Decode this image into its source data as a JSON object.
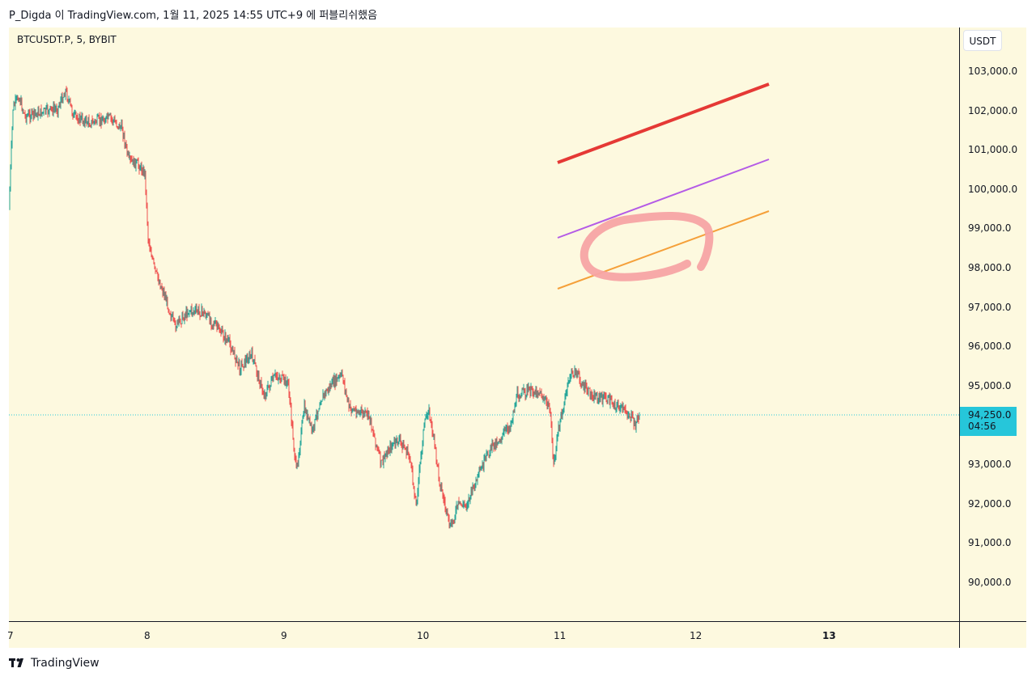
{
  "header": {
    "publish_text": "P_Digda 이 TradingView.com, 1월 11, 2025 14:55 UTC+9 에 퍼블리쉬했음"
  },
  "chart": {
    "symbol_text": "BTCUSDT.P, 5, BYBIT",
    "currency_button": "USDT",
    "price_ticks": [
      "103,000.0",
      "102,000.0",
      "101,000.0",
      "100,000.0",
      "99,000.0",
      "98,000.0",
      "97,000.0",
      "96,000.0",
      "95,000.0",
      "94,000.0",
      "93,000.0",
      "92,000.0",
      "91,000.0",
      "90,000.0"
    ],
    "current_price": "94,250.0",
    "countdown": "04:56",
    "time_ticks": [
      "7",
      "8",
      "9",
      "10",
      "11",
      "12",
      "13"
    ],
    "colors": {
      "background": "#fdf9df",
      "candle_up": "#26a69a",
      "candle_down": "#ef5350",
      "last_price": "#26c6da",
      "red_line": "#e53935",
      "purple_line": "#b45be6",
      "orange_line": "#f5a03a",
      "circle": "#f7a4a4"
    }
  },
  "footer": {
    "brand": "TradingView"
  }
}
